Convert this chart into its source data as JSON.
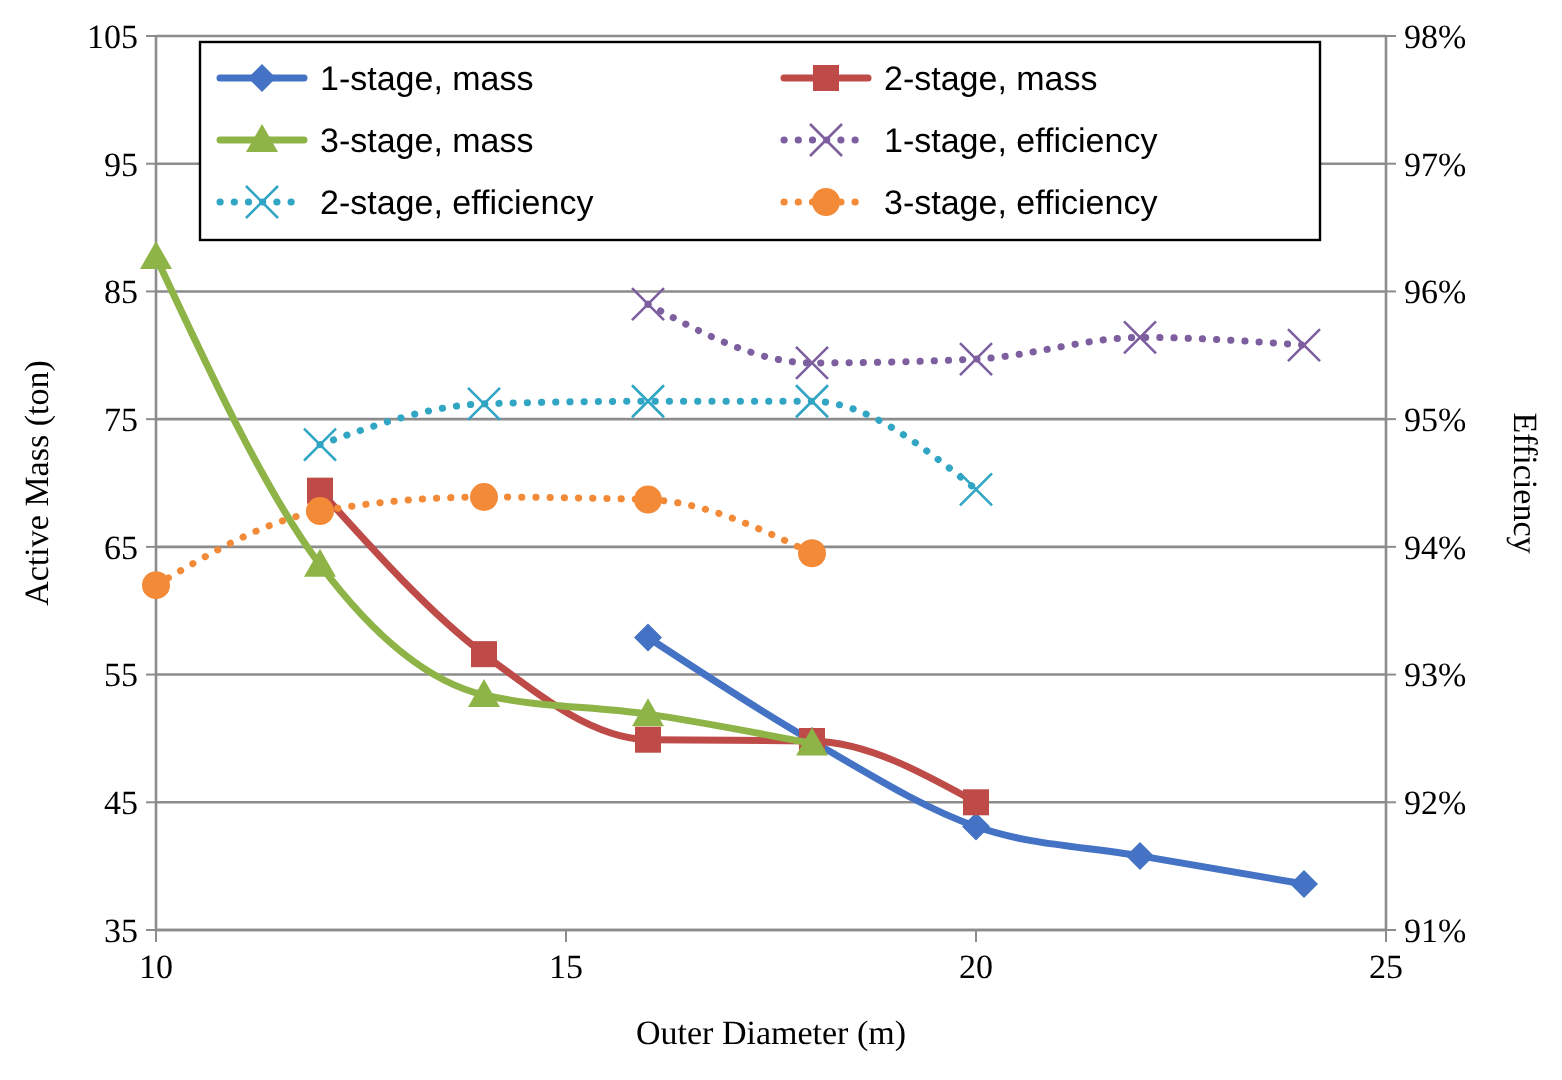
{
  "chart_data": {
    "type": "line",
    "xlabel": "Outer Diameter  (m)",
    "ylabel": "Active Mass (ton)",
    "y2label": "Efficiency",
    "xlim": [
      10,
      25
    ],
    "xticks": [
      10,
      15,
      20,
      25
    ],
    "ylim": [
      35,
      105
    ],
    "yticks": [
      35,
      45,
      55,
      65,
      75,
      85,
      95,
      105
    ],
    "y2lim": [
      91,
      98
    ],
    "y2ticks": [
      {
        "value": 91,
        "label": "91%"
      },
      {
        "value": 92,
        "label": "92%"
      },
      {
        "value": 93,
        "label": "93%"
      },
      {
        "value": 94,
        "label": "94%"
      },
      {
        "value": 95,
        "label": "95%"
      },
      {
        "value": 96,
        "label": "96%"
      },
      {
        "value": 97,
        "label": "97%"
      },
      {
        "value": 98,
        "label": "98%"
      }
    ],
    "grid": "y",
    "legend": "top",
    "series": [
      {
        "name": "1-stage, mass",
        "color": "#4472c4",
        "marker": "diamond",
        "line_style": "solid",
        "x": [
          16,
          18,
          20,
          22,
          24
        ],
        "values": [
          57.9,
          49.8,
          43.1,
          40.8,
          38.6
        ]
      },
      {
        "name": "2-stage, mass",
        "color": "#be4b48",
        "marker": "square",
        "line_style": "solid",
        "x": [
          12,
          14,
          16,
          18,
          20
        ],
        "values": [
          69.4,
          56.6,
          49.9,
          49.8,
          45
        ]
      },
      {
        "name": "3-stage, mass",
        "color": "#8eb448",
        "marker": "triangle",
        "line_style": "solid",
        "x": [
          10,
          12,
          14,
          16,
          18
        ],
        "values": [
          87.7,
          63.6,
          53.4,
          51.9,
          49.6
        ]
      },
      {
        "name": "1-stage, efficiency",
        "color": "#7d5fa0",
        "marker": "cross",
        "line_style": "dotted",
        "axis": "y2",
        "x": [
          16,
          18,
          20,
          22,
          24
        ],
        "values": [
          95.9,
          95.44,
          95.47,
          95.64,
          95.58
        ]
      },
      {
        "name": "2-stage, efficiency",
        "color": "#31a5c4",
        "marker": "cross",
        "line_style": "dotted",
        "axis": "y2",
        "x": [
          12,
          14,
          16,
          18,
          20
        ],
        "values": [
          94.8,
          95.12,
          95.14,
          95.14,
          94.45
        ]
      },
      {
        "name": "3-stage, efficiency",
        "color": "#f38a38",
        "marker": "circle",
        "line_style": "dotted",
        "axis": "y2",
        "x": [
          10,
          12,
          14,
          16,
          18
        ],
        "values": [
          93.7,
          94.28,
          94.39,
          94.37,
          93.95
        ]
      }
    ]
  }
}
